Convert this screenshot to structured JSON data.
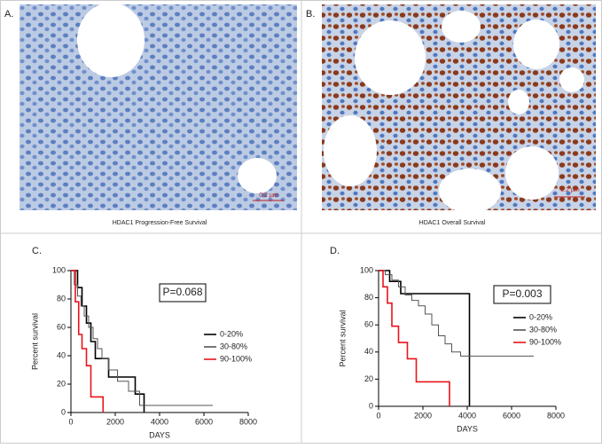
{
  "panels": [
    {
      "label": "A.",
      "caption": "HDAC1 Progression-Free Survival",
      "scale_bar": "0.2 µm"
    },
    {
      "label": "B.",
      "caption": "HDAC1 Overall Survival",
      "scale_bar": "0.2 µm"
    }
  ],
  "chart_data": [
    {
      "type": "line",
      "step": true,
      "label": "C.",
      "annotation": "P=0.068",
      "xlabel": "DAYS",
      "ylabel": "Percent survival",
      "xlim": [
        0,
        8000
      ],
      "xticks": [
        0,
        2000,
        4000,
        6000,
        8000
      ],
      "ylim": [
        0,
        100
      ],
      "yticks": [
        0,
        20,
        40,
        60,
        80,
        100
      ],
      "series": [
        {
          "name": "0-20%",
          "color": "#000000",
          "x": [
            0,
            300,
            500,
            700,
            900,
            1100,
            1700,
            2900,
            3300
          ],
          "values": [
            100,
            88,
            75,
            63,
            50,
            38,
            25,
            13,
            0
          ]
        },
        {
          "name": "30-80%",
          "color": "#555555",
          "x": [
            0,
            150,
            300,
            450,
            600,
            800,
            1000,
            1200,
            1400,
            1700,
            2100,
            2600,
            3100,
            6400
          ],
          "values": [
            100,
            90,
            82,
            75,
            68,
            60,
            52,
            45,
            38,
            30,
            22,
            15,
            5,
            5
          ]
        },
        {
          "name": "90-100%",
          "color": "#e8141b",
          "x": [
            0,
            200,
            350,
            500,
            700,
            900,
            1450
          ],
          "values": [
            100,
            78,
            55,
            45,
            33,
            11,
            0
          ]
        }
      ]
    },
    {
      "type": "line",
      "step": true,
      "label": "D.",
      "annotation": "P=0.003",
      "xlabel": "DAYS",
      "ylabel": "Percent survival",
      "xlim": [
        0,
        8000
      ],
      "xticks": [
        0,
        2000,
        4000,
        6000,
        8000
      ],
      "ylim": [
        0,
        100
      ],
      "yticks": [
        0,
        20,
        40,
        60,
        80,
        100
      ],
      "series": [
        {
          "name": "0-20%",
          "color": "#000000",
          "x": [
            0,
            500,
            1000,
            4100
          ],
          "values": [
            100,
            92,
            83,
            0
          ]
        },
        {
          "name": "30-80%",
          "color": "#555555",
          "x": [
            0,
            300,
            600,
            900,
            1200,
            1500,
            1800,
            2100,
            2400,
            2700,
            3000,
            3300,
            3700,
            7000
          ],
          "values": [
            100,
            97,
            93,
            88,
            82,
            78,
            74,
            68,
            60,
            52,
            46,
            40,
            37,
            37
          ]
        },
        {
          "name": "90-100%",
          "color": "#e8141b",
          "x": [
            0,
            200,
            400,
            600,
            900,
            1300,
            1700,
            3200
          ],
          "values": [
            100,
            88,
            76,
            59,
            47,
            35,
            18,
            0
          ]
        }
      ]
    }
  ]
}
